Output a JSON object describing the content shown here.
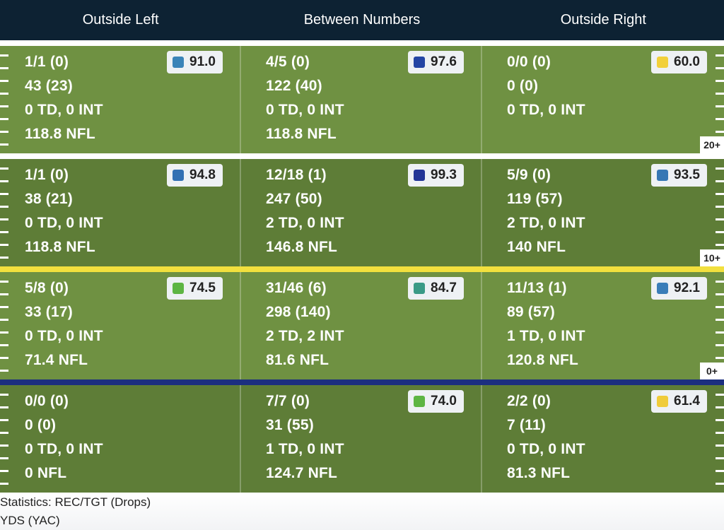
{
  "header": {
    "columns": [
      "Outside Left",
      "Between Numbers",
      "Outside Right"
    ]
  },
  "colors": {
    "header_bg": "#0d2233",
    "field_light": "#6f9142",
    "field_dark": "#5e7d37",
    "line_yellow": "#f2e03e",
    "line_blue": "#1c2f80"
  },
  "yard_markers": [
    "20+",
    "10+",
    "0+"
  ],
  "rows": [
    {
      "cells": [
        {
          "lines": [
            "1/1 (0)",
            "43 (23)",
            "0 TD, 0 INT",
            "118.8 NFL"
          ],
          "grade": "91.0",
          "grade_color": "#3a84b8"
        },
        {
          "lines": [
            "4/5 (0)",
            "122 (40)",
            "0 TD, 0 INT",
            "118.8 NFL"
          ],
          "grade": "97.6",
          "grade_color": "#2445a4"
        },
        {
          "lines": [
            "0/0 (0)",
            "0 (0)",
            "0 TD, 0 INT",
            ""
          ],
          "grade": "60.0",
          "grade_color": "#f2d03a"
        }
      ]
    },
    {
      "cells": [
        {
          "lines": [
            "1/1 (0)",
            "38 (21)",
            "0 TD, 0 INT",
            "118.8 NFL"
          ],
          "grade": "94.8",
          "grade_color": "#3270b3"
        },
        {
          "lines": [
            "12/18 (1)",
            "247 (50)",
            "2 TD, 0 INT",
            "146.8 NFL"
          ],
          "grade": "99.3",
          "grade_color": "#223496"
        },
        {
          "lines": [
            "5/9 (0)",
            "119 (57)",
            "2 TD, 0 INT",
            "140 NFL"
          ],
          "grade": "93.5",
          "grade_color": "#3677b4"
        }
      ]
    },
    {
      "cells": [
        {
          "lines": [
            "5/8 (0)",
            "33 (17)",
            "0 TD, 0 INT",
            "71.4 NFL"
          ],
          "grade": "74.5",
          "grade_color": "#5db543"
        },
        {
          "lines": [
            "31/46 (6)",
            "298 (140)",
            "2 TD, 2 INT",
            "81.6 NFL"
          ],
          "grade": "84.7",
          "grade_color": "#3a9a86"
        },
        {
          "lines": [
            "11/13 (1)",
            "89 (57)",
            "1 TD, 0 INT",
            "120.8 NFL"
          ],
          "grade": "92.1",
          "grade_color": "#3a7db8"
        }
      ]
    },
    {
      "cells": [
        {
          "lines": [
            "0/0 (0)",
            "0 (0)",
            "0 TD, 0 INT",
            "0 NFL"
          ],
          "grade": "",
          "grade_color": ""
        },
        {
          "lines": [
            "7/7 (0)",
            "31 (55)",
            "1 TD, 0 INT",
            "124.7 NFL"
          ],
          "grade": "74.0",
          "grade_color": "#5db543"
        },
        {
          "lines": [
            "2/2 (0)",
            "7 (11)",
            "0 TD, 0 INT",
            "81.3 NFL"
          ],
          "grade": "61.4",
          "grade_color": "#f0cc3a"
        }
      ]
    }
  ],
  "legend": {
    "line1": "Statistics: REC/TGT (Drops)",
    "line2": "YDS (YAC)"
  }
}
